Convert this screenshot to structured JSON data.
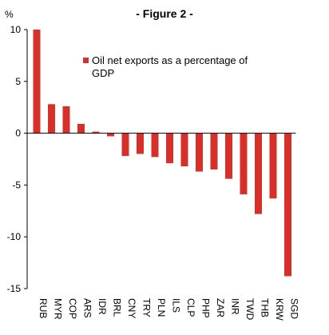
{
  "chart_data": {
    "type": "bar",
    "title": "- Figure 2 -",
    "ylabel": "%",
    "xlabel": "",
    "ylim": [
      -15,
      10
    ],
    "yticks": [
      10,
      5,
      0,
      -5,
      -10,
      -15
    ],
    "grid": false,
    "legend_position": "top-right",
    "series": [
      {
        "name": "Oil net exports as a percentage of GDP",
        "color": "#d7302a",
        "values": [
          10.0,
          2.8,
          2.6,
          0.9,
          0.15,
          -0.3,
          -2.2,
          -2.0,
          -2.3,
          -2.9,
          -3.2,
          -3.7,
          -3.5,
          -4.4,
          -5.9,
          -7.8,
          -6.3,
          -13.8
        ]
      }
    ],
    "categories": [
      "RUB",
      "MYR",
      "COP",
      "ARS",
      "IDR",
      "BRL",
      "CNY",
      "TRY",
      "PLN",
      "ILS",
      "CLP",
      "PHP",
      "ZAR",
      "INR",
      "TWD",
      "THB",
      "KRW",
      "SGD"
    ]
  }
}
